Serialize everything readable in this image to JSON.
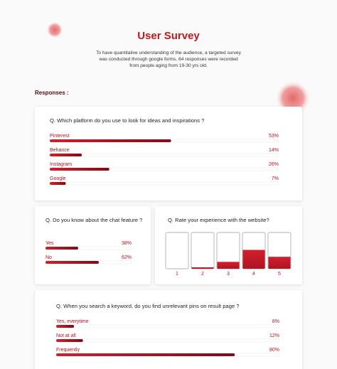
{
  "header": {
    "title": "User Survey",
    "description": [
      "To have quantitative understanding of the audience, a targeted survey",
      "was conducted through google forms. 64 responses were recorded",
      "from people aging from 19-30 yrs old."
    ]
  },
  "section_label": "Responses :",
  "questions": [
    {
      "question": "Q. Which platform do you use to look for ideas and inspirations ?",
      "options": [
        {
          "label": "Pinterest",
          "value": 53,
          "value_label": "53%"
        },
        {
          "label": "Behance",
          "value": 14,
          "value_label": "14%"
        },
        {
          "label": "Instagram",
          "value": 26,
          "value_label": "26%"
        },
        {
          "label": "Google",
          "value": 7,
          "value_label": "7%"
        }
      ]
    },
    {
      "question": "Q. Do you know about the chat feature ?",
      "options": [
        {
          "label": "Yes",
          "value": 38,
          "value_label": "38%"
        },
        {
          "label": "No",
          "value": 62,
          "value_label": "62%"
        }
      ]
    },
    {
      "question": "Q. When you search a keyword, do you find unrelevant pins on result page ?",
      "options": [
        {
          "label": "Yes, everytime",
          "value": 8,
          "value_label": "8%"
        },
        {
          "label": "Not at all",
          "value": 12,
          "value_label": "12%"
        },
        {
          "label": "Frequently",
          "value": 80,
          "value_label": "80%"
        }
      ]
    }
  ],
  "rating": {
    "question": "Q. Rate your experience with the website?",
    "categories": [
      "1",
      "2",
      "3",
      "4",
      "5"
    ],
    "values": [
      0,
      4,
      19,
      52,
      33
    ]
  }
}
